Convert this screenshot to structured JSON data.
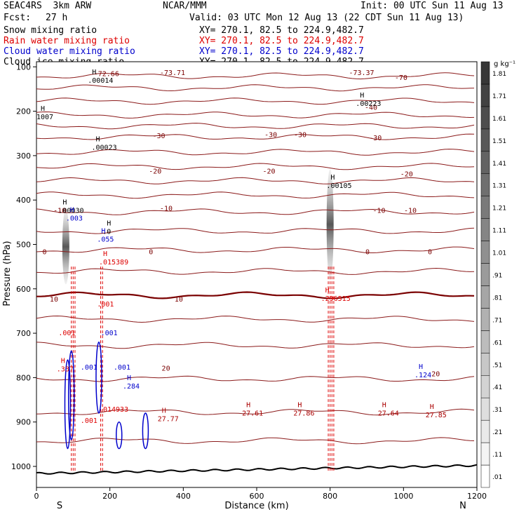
{
  "header": {
    "model": "SEAC4RS  3km ARW",
    "org": "NCAR/MMM",
    "init": "Init: 00 UTC Sun 11 Aug 13",
    "fcst_label": "Fcst:",
    "fcst_value": "27 h",
    "valid": "Valid: 03 UTC Mon 12 Aug 13 (22 CDT Sun 11 Aug 13)"
  },
  "fields": [
    {
      "name": "Snow mixing ratio",
      "xy": "XY= 270.1, 82.5 to 224.9,482.7",
      "color": "#000000"
    },
    {
      "name": "Rain water mixing ratio",
      "xy": "XY= 270.1, 82.5 to 224.9,482.7",
      "color": "#dd0000"
    },
    {
      "name": "Cloud water mixing ratio",
      "xy": "XY= 270.1, 82.5 to 224.9,482.7",
      "color": "#0000cc"
    },
    {
      "name": "Cloud ice mixing ratio",
      "xy": "XY= 270.1, 82.5 to 224.9,482.7",
      "color": "#000000"
    }
  ],
  "chart_data": {
    "type": "heatmap",
    "xlabel": "Distance (km)",
    "ylabel": "Pressure (hPa)",
    "xlim": [
      0,
      1200
    ],
    "ylim": [
      1000,
      100
    ],
    "x_ticks": [
      0,
      200,
      400,
      600,
      800,
      1000,
      1200
    ],
    "y_ticks": [
      100,
      200,
      300,
      400,
      500,
      600,
      700,
      800,
      900,
      1000
    ],
    "x_end_labels": {
      "left": "S",
      "right": "N"
    },
    "colorbar": {
      "unit": "g kg⁻¹",
      "levels": [
        ".01",
        ".11",
        ".21",
        ".31",
        ".41",
        ".51",
        ".61",
        ".71",
        ".81",
        ".91",
        "1.01",
        "1.11",
        "1.21",
        "1.31",
        "1.41",
        "1.51",
        "1.61",
        "1.71",
        "1.81"
      ]
    },
    "temperature_contours": [
      -70,
      -60,
      -50,
      -40,
      -30,
      -20,
      -10,
      0,
      10,
      20
    ],
    "temperature_labels": [
      {
        "text": "-72.66",
        "x": 160,
        "y": 107
      },
      {
        "text": "-73.71",
        "x": 340,
        "y": 105
      },
      {
        "text": "-73.37",
        "x": 855,
        "y": 105
      },
      {
        "text": "-70",
        "x": 980,
        "y": 117
      },
      {
        "text": "-40",
        "x": 898,
        "y": 195
      },
      {
        "text": "-30",
        "x": 320,
        "y": 270
      },
      {
        "text": "-30",
        "x": 625,
        "y": 267
      },
      {
        "text": "-30",
        "x": 705,
        "y": 267
      },
      {
        "text": "-30",
        "x": 910,
        "y": 275
      },
      {
        "text": "-20",
        "x": 310,
        "y": 362
      },
      {
        "text": "-20",
        "x": 620,
        "y": 362
      },
      {
        "text": "-20",
        "x": 995,
        "y": 370
      },
      {
        "text": "-10",
        "x": 50,
        "y": 465
      },
      {
        "text": "-10",
        "x": 340,
        "y": 460
      },
      {
        "text": "-10",
        "x": 920,
        "y": 465
      },
      {
        "text": "-10",
        "x": 1005,
        "y": 465
      },
      {
        "text": "0",
        "x": 20,
        "y": 573
      },
      {
        "text": "0",
        "x": 310,
        "y": 573
      },
      {
        "text": "0",
        "x": 900,
        "y": 573
      },
      {
        "text": "0",
        "x": 1070,
        "y": 573
      },
      {
        "text": "10",
        "x": 40,
        "y": 697
      },
      {
        "text": "10",
        "x": 380,
        "y": 697
      },
      {
        "text": "20",
        "x": 345,
        "y": 878
      },
      {
        "text": "20",
        "x": 1080,
        "y": 893
      }
    ],
    "maxima": [
      {
        "label": "H",
        "value": ".00014",
        "x": 140,
        "y": 125,
        "color": "#000000"
      },
      {
        "label": "H",
        "value": ".00223",
        "x": 870,
        "y": 185,
        "color": "#000000"
      },
      {
        "label": "H",
        "value": "1007",
        "x": 0,
        "y": 220,
        "color": "#000000"
      },
      {
        "label": "H",
        "value": ".00023",
        "x": 150,
        "y": 300,
        "color": "#000000"
      },
      {
        "label": "H",
        "value": ".00105",
        "x": 790,
        "y": 400,
        "color": "#000000"
      },
      {
        "label": "H",
        "value": ".00030",
        "x": 60,
        "y": 465,
        "color": "#000000"
      },
      {
        "label": "H",
        "value": ".003",
        "x": 80,
        "y": 485,
        "color": "#0000cc"
      },
      {
        "label": "H",
        "value": ".0",
        "x": 180,
        "y": 520,
        "color": "#000000"
      },
      {
        "label": "H",
        "value": ".055",
        "x": 165,
        "y": 540,
        "color": "#0000cc"
      },
      {
        "label": "H",
        "value": ".015389",
        "x": 170,
        "y": 600,
        "color": "#dd0000"
      },
      {
        "label": "H",
        "value": ".296515",
        "x": 775,
        "y": 695,
        "color": "#dd0000"
      },
      {
        "label": "",
        "value": ".001",
        "x": 165,
        "y": 710,
        "color": "#dd0000"
      },
      {
        "label": "",
        "value": ".001",
        "x": 175,
        "y": 785,
        "color": "#0000cc"
      },
      {
        "label": "",
        "value": ".001",
        "x": 60,
        "y": 785,
        "color": "#dd0000"
      },
      {
        "label": "H",
        "value": ".337",
        "x": 55,
        "y": 880,
        "color": "#dd0000"
      },
      {
        "label": "",
        "value": ".001",
        "x": 120,
        "y": 875,
        "color": "#0000cc"
      },
      {
        "label": "",
        "value": ".001",
        "x": 210,
        "y": 875,
        "color": "#0000cc"
      },
      {
        "label": "H",
        "value": ".284",
        "x": 235,
        "y": 925,
        "color": "#0000cc"
      },
      {
        "label": "H",
        "value": ".124",
        "x": 1030,
        "y": 895,
        "color": "#0000cc"
      },
      {
        "label": "",
        "value": ".014933",
        "x": 170,
        "y": 985,
        "color": "#dd0000"
      },
      {
        "label": "",
        "value": ".001",
        "x": 120,
        "y": 1015,
        "color": "#dd0000"
      },
      {
        "label": "H",
        "value": "27.77",
        "x": 330,
        "y": 1010,
        "color": "#aa0000"
      },
      {
        "label": "H",
        "value": "27.61",
        "x": 560,
        "y": 995,
        "color": "#aa0000"
      },
      {
        "label": "H",
        "value": "27.86",
        "x": 700,
        "y": 995,
        "color": "#aa0000"
      },
      {
        "label": "H",
        "value": "27.64",
        "x": 930,
        "y": 995,
        "color": "#aa0000"
      },
      {
        "label": "H",
        "value": "27.85",
        "x": 1060,
        "y": 1000,
        "color": "#aa0000"
      }
    ],
    "snow_columns": [
      {
        "x": 80,
        "p_top": 420,
        "p_bottom": 590
      },
      {
        "x": 800,
        "p_top": 330,
        "p_bottom": 580
      }
    ]
  }
}
